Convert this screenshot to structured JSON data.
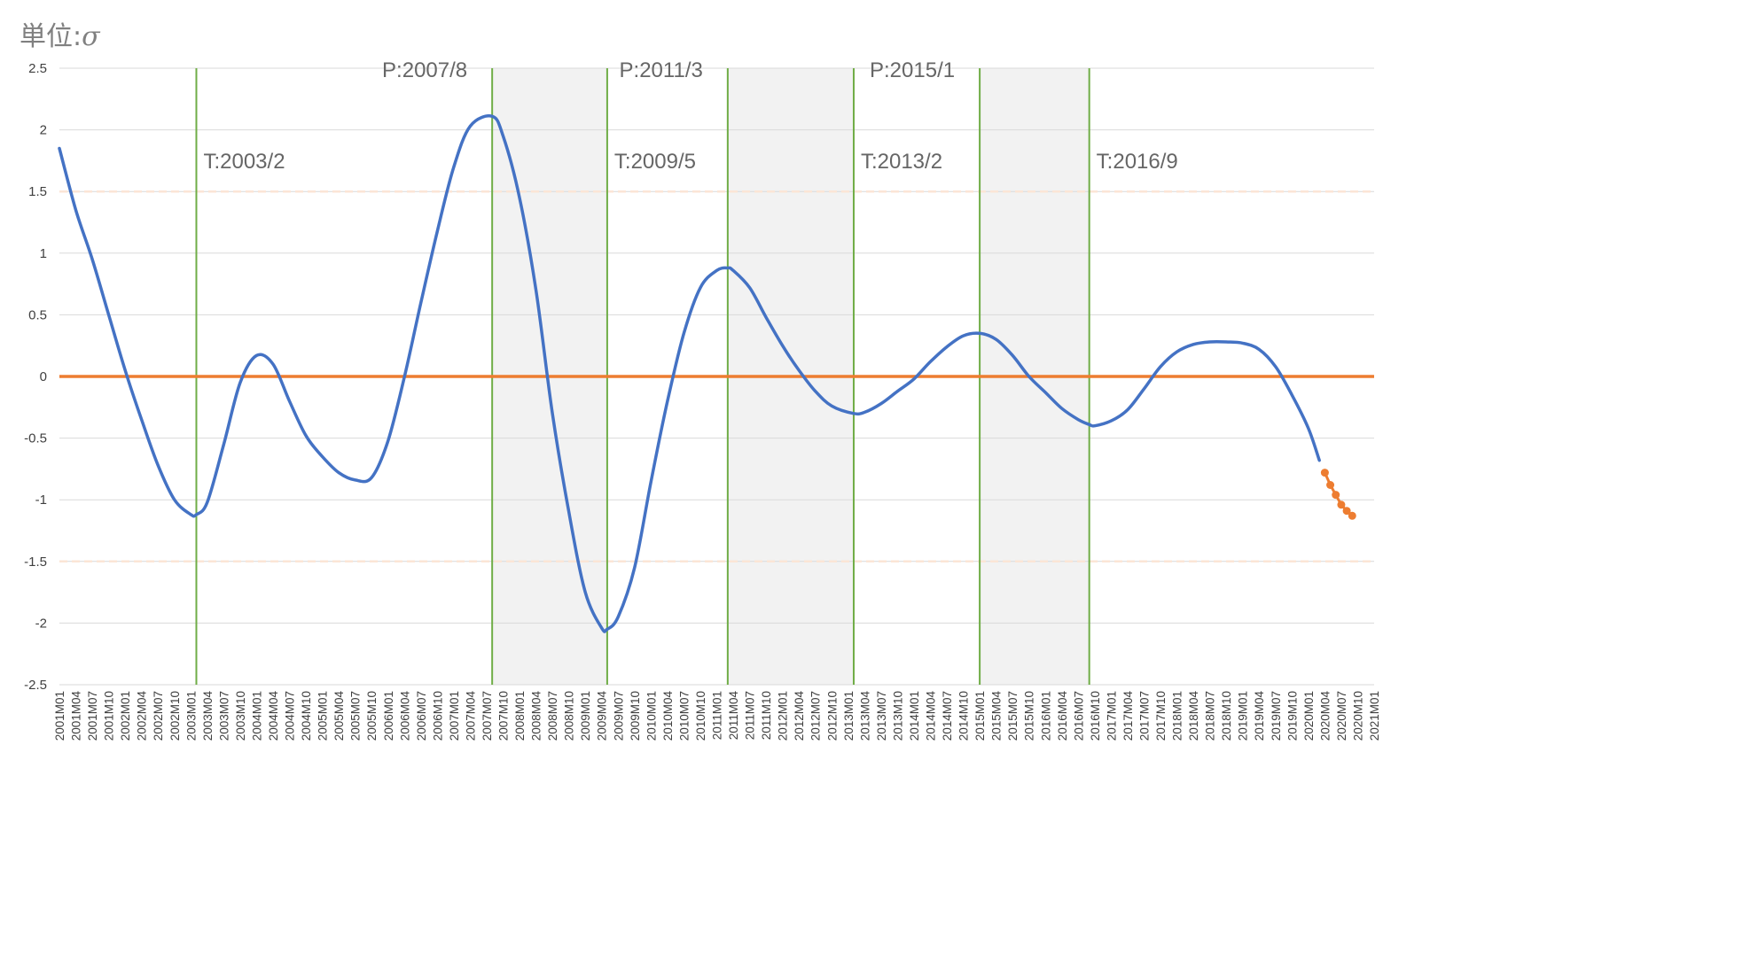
{
  "unit_label": {
    "prefix": "単位:",
    "symbol": "σ"
  },
  "chart_data": {
    "type": "line",
    "title": "",
    "xlabel": "",
    "ylabel": "",
    "x_start": "2001M01",
    "x_end": "2021M01",
    "x_tick_interval_months": 3,
    "ylim": [
      -2.5,
      2.5
    ],
    "y_ticks": [
      2.5,
      2,
      1.5,
      1,
      0.5,
      0,
      -0.5,
      -1,
      -1.5,
      -2,
      -2.5
    ],
    "grid": true,
    "legend": "none",
    "reference_lines": [
      {
        "kind": "zero-line",
        "y": 0,
        "color": "#ED7D31"
      },
      {
        "kind": "band-upper",
        "y": 1.5,
        "color": "#FBE5D6"
      },
      {
        "kind": "band-lower",
        "y": -1.5,
        "color": "#FBE5D6"
      }
    ],
    "contraction_shading": [
      {
        "from": "2007M08",
        "to": "2009M05"
      },
      {
        "from": "2011M03",
        "to": "2013M02"
      },
      {
        "from": "2015M01",
        "to": "2016M09"
      }
    ],
    "turning_points": [
      {
        "label": "T:2003/2",
        "date": "2003M02",
        "label_row": "lower"
      },
      {
        "label": "P:2007/8",
        "date": "2007M08",
        "label_row": "upper"
      },
      {
        "label": "T:2009/5",
        "date": "2009M05",
        "label_row": "lower"
      },
      {
        "label": "P:2011/3",
        "date": "2011M03",
        "label_row": "upper"
      },
      {
        "label": "T:2013/2",
        "date": "2013M02",
        "label_row": "lower"
      },
      {
        "label": "P:2015/1",
        "date": "2015M01",
        "label_row": "upper"
      },
      {
        "label": "T:2016/9",
        "date": "2016M09",
        "label_row": "lower"
      }
    ],
    "series": [
      {
        "color": "#4472C4",
        "style": "smooth-line",
        "points": [
          [
            "2001M01",
            1.85
          ],
          [
            "2001M04",
            1.35
          ],
          [
            "2001M07",
            0.95
          ],
          [
            "2001M10",
            0.5
          ],
          [
            "2002M01",
            0.05
          ],
          [
            "2002M04",
            -0.35
          ],
          [
            "2002M07",
            -0.72
          ],
          [
            "2002M10",
            -1.0
          ],
          [
            "2003M01",
            -1.12
          ],
          [
            "2003M02",
            -1.12
          ],
          [
            "2003M04",
            -1.02
          ],
          [
            "2003M07",
            -0.55
          ],
          [
            "2003M10",
            -0.05
          ],
          [
            "2004M01",
            0.17
          ],
          [
            "2004M04",
            0.1
          ],
          [
            "2004M07",
            -0.2
          ],
          [
            "2004M10",
            -0.48
          ],
          [
            "2005M01",
            -0.65
          ],
          [
            "2005M04",
            -0.78
          ],
          [
            "2005M07",
            -0.84
          ],
          [
            "2005M10",
            -0.82
          ],
          [
            "2006M01",
            -0.52
          ],
          [
            "2006M04",
            0.0
          ],
          [
            "2006M07",
            0.6
          ],
          [
            "2006M10",
            1.18
          ],
          [
            "2007M01",
            1.7
          ],
          [
            "2007M04",
            2.03
          ],
          [
            "2007M08",
            2.11
          ],
          [
            "2007M10",
            1.95
          ],
          [
            "2008M01",
            1.45
          ],
          [
            "2008M04",
            0.7
          ],
          [
            "2008M07",
            -0.3
          ],
          [
            "2008M10",
            -1.1
          ],
          [
            "2009M01",
            -1.75
          ],
          [
            "2009M04",
            -2.04
          ],
          [
            "2009M05",
            -2.05
          ],
          [
            "2009M07",
            -1.95
          ],
          [
            "2009M10",
            -1.55
          ],
          [
            "2010M01",
            -0.85
          ],
          [
            "2010M04",
            -0.2
          ],
          [
            "2010M07",
            0.35
          ],
          [
            "2010M10",
            0.72
          ],
          [
            "2011M01",
            0.86
          ],
          [
            "2011M03",
            0.88
          ],
          [
            "2011M04",
            0.86
          ],
          [
            "2011M07",
            0.72
          ],
          [
            "2011M10",
            0.48
          ],
          [
            "2012M01",
            0.25
          ],
          [
            "2012M04",
            0.05
          ],
          [
            "2012M07",
            -0.12
          ],
          [
            "2012M10",
            -0.24
          ],
          [
            "2013M02",
            -0.3
          ],
          [
            "2013M04",
            -0.29
          ],
          [
            "2013M07",
            -0.22
          ],
          [
            "2013M10",
            -0.12
          ],
          [
            "2014M01",
            -0.02
          ],
          [
            "2014M04",
            0.12
          ],
          [
            "2014M07",
            0.24
          ],
          [
            "2014M10",
            0.33
          ],
          [
            "2015M01",
            0.35
          ],
          [
            "2015M04",
            0.3
          ],
          [
            "2015M07",
            0.17
          ],
          [
            "2015M10",
            0.0
          ],
          [
            "2016M01",
            -0.13
          ],
          [
            "2016M04",
            -0.26
          ],
          [
            "2016M07",
            -0.35
          ],
          [
            "2016M09",
            -0.39
          ],
          [
            "2016M10",
            -0.4
          ],
          [
            "2017M01",
            -0.36
          ],
          [
            "2017M04",
            -0.27
          ],
          [
            "2017M07",
            -0.1
          ],
          [
            "2017M10",
            0.08
          ],
          [
            "2018M01",
            0.2
          ],
          [
            "2018M04",
            0.26
          ],
          [
            "2018M07",
            0.28
          ],
          [
            "2018M10",
            0.28
          ],
          [
            "2019M01",
            0.27
          ],
          [
            "2019M04",
            0.22
          ],
          [
            "2019M07",
            0.08
          ],
          [
            "2019M10",
            -0.15
          ],
          [
            "2020M01",
            -0.42
          ],
          [
            "2020M03",
            -0.68
          ]
        ]
      },
      {
        "color": "#ED7D31",
        "style": "line-markers",
        "points": [
          [
            "2020M04",
            -0.78
          ],
          [
            "2020M05",
            -0.88
          ],
          [
            "2020M06",
            -0.96
          ],
          [
            "2020M07",
            -1.04
          ],
          [
            "2020M08",
            -1.09
          ],
          [
            "2020M09",
            -1.13
          ]
        ]
      }
    ]
  }
}
